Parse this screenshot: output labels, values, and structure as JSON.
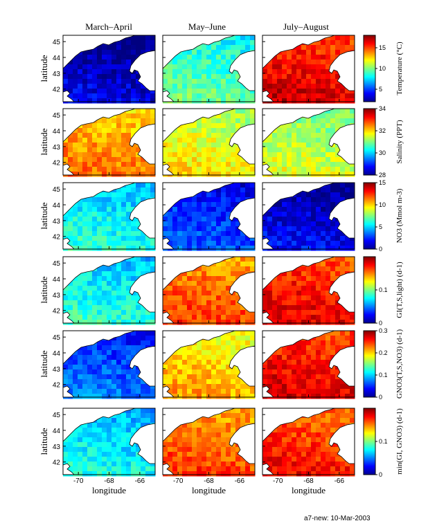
{
  "chart_data": {
    "type": "heatmap",
    "column_titles": [
      "March–April",
      "May–June",
      "July–August"
    ],
    "ylabel": "latitude",
    "xlabel": "longitude",
    "yticks": [
      "45",
      "44",
      "43",
      "42"
    ],
    "xticks": [
      "-70",
      "-68",
      "-66"
    ],
    "rows": [
      {
        "colorbar_label": "Temperature (°C)",
        "colorbar_ticks": [
          "15",
          "10",
          "5"
        ],
        "colorbar_range": [
          2,
          18
        ],
        "panel_levels": [
          3,
          9,
          16
        ]
      },
      {
        "colorbar_label": "Salinity (PPT)",
        "colorbar_ticks": [
          "34",
          "32",
          "30",
          "28"
        ],
        "colorbar_range": [
          28,
          34
        ],
        "panel_levels": [
          32.3,
          31.6,
          31.3
        ]
      },
      {
        "colorbar_label": "NO3 (Mmol m-3)",
        "colorbar_ticks": [
          "15",
          "10",
          "5",
          "0"
        ],
        "colorbar_range": [
          0,
          15
        ],
        "panel_levels": [
          5.5,
          2.5,
          1.2
        ]
      },
      {
        "colorbar_label": "GI(T,S,light) (d-1)",
        "colorbar_ticks": [
          "0.1",
          "0"
        ],
        "colorbar_range": [
          0,
          0.2
        ],
        "panel_levels": [
          0.075,
          0.155,
          0.172
        ]
      },
      {
        "colorbar_label": "GNO3(T,S,NO3) (d-1)",
        "colorbar_ticks": [
          "0.3",
          "0.2",
          "0.1",
          "0"
        ],
        "colorbar_range": [
          0,
          0.3
        ],
        "panel_levels": [
          0.06,
          0.2,
          0.26
        ]
      },
      {
        "colorbar_label": "min(GI, GNO3) (d-1)",
        "colorbar_ticks": [
          "0.1",
          "0"
        ],
        "colorbar_range": [
          0,
          0.2
        ],
        "panel_levels": [
          0.07,
          0.155,
          0.165
        ]
      }
    ]
  },
  "footer": "a7-new: 10-Mar-2003",
  "colors": {
    "colormap": "jet",
    "land": "#ffffff",
    "coast": "#000000"
  }
}
